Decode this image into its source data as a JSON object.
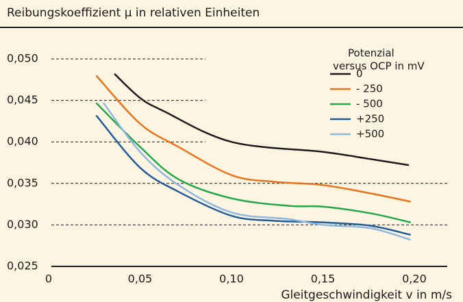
{
  "chart_data": {
    "type": "line",
    "title": "Reibungskoeffizient μ in relativen Einheiten",
    "x_label": "Gleitgeschwindigkeit v in m/s",
    "legend_title": [
      "Potenzial",
      "versus OCP in mV"
    ],
    "xlim": [
      0,
      0.218
    ],
    "ylim": [
      0.025,
      0.05
    ],
    "xticks": [
      0,
      {
        "value": 0.05,
        "label": "0,05"
      },
      {
        "value": 0.1,
        "label": "0,10"
      },
      {
        "value": 0.15,
        "label": "0,15"
      },
      {
        "value": 0.2,
        "label": "0,20"
      }
    ],
    "yticks": [
      {
        "value": 0.025,
        "label": "0,025"
      },
      {
        "value": 0.03,
        "label": "0,030"
      },
      {
        "value": 0.035,
        "label": "0,035"
      },
      {
        "value": 0.04,
        "label": "0,040"
      },
      {
        "value": 0.045,
        "label": "0,045"
      },
      {
        "value": 0.05,
        "label": "0,050"
      }
    ],
    "grid": true,
    "series": [
      {
        "name": "0",
        "color": "#1a1a1a",
        "x": [
          0.036,
          0.05,
          0.063,
          0.1,
          0.15,
          0.174,
          0.197
        ],
        "values": [
          0.0482,
          0.0453,
          0.0437,
          0.04,
          0.0388,
          0.038,
          0.0372
        ]
      },
      {
        "name": "- 250",
        "color": "#e8731a",
        "x": [
          0.026,
          0.05,
          0.071,
          0.1,
          0.123,
          0.15,
          0.176,
          0.198
        ],
        "values": [
          0.048,
          0.0422,
          0.0394,
          0.036,
          0.0352,
          0.0348,
          0.0338,
          0.0328
        ]
      },
      {
        "name": "- 500",
        "color": "#22a84a",
        "x": [
          0.026,
          0.05,
          0.071,
          0.1,
          0.131,
          0.15,
          0.176,
          0.198
        ],
        "values": [
          0.0447,
          0.0394,
          0.0355,
          0.0332,
          0.0323,
          0.0322,
          0.0314,
          0.0303
        ]
      },
      {
        "name": "+250",
        "color": "#1f5a9a",
        "x": [
          0.026,
          0.05,
          0.071,
          0.1,
          0.123,
          0.15,
          0.176,
          0.198
        ],
        "values": [
          0.0432,
          0.0369,
          0.034,
          0.0311,
          0.0305,
          0.0303,
          0.0299,
          0.0288
        ]
      },
      {
        "name": "+500",
        "color": "#8fb8e0",
        "x": [
          0.03,
          0.05,
          0.071,
          0.1,
          0.131,
          0.15,
          0.176,
          0.198
        ],
        "values": [
          0.0447,
          0.0388,
          0.0348,
          0.0315,
          0.0307,
          0.03,
          0.0296,
          0.0282
        ]
      }
    ]
  }
}
